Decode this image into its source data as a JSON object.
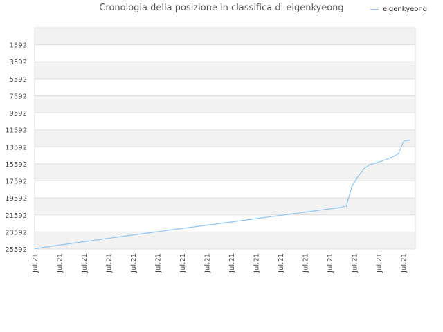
{
  "chart_data": {
    "type": "line",
    "title": "Cronologia della posizione in classifica di eigenkyeong",
    "legend": {
      "position": "top-right",
      "entries": [
        "eigenkyeong"
      ]
    },
    "series": [
      {
        "name": "eigenkyeong",
        "color": "#8ec4f0",
        "x": [
          0,
          1,
          2,
          3,
          4,
          5,
          6,
          7,
          8,
          9,
          10,
          11,
          12,
          13,
          14,
          15,
          16,
          17,
          18,
          19,
          20,
          21,
          22,
          23,
          24,
          25,
          26,
          27,
          28,
          29,
          30,
          31,
          32,
          33,
          34,
          35,
          36,
          37,
          38,
          39,
          40,
          41,
          42,
          43,
          44,
          45,
          46,
          47,
          48,
          49,
          50,
          51,
          52,
          53,
          54,
          55,
          56,
          57,
          58,
          59,
          60,
          61,
          62,
          63,
          64,
          65
        ],
        "values": [
          25550,
          25450,
          25350,
          25250,
          25160,
          25070,
          24980,
          24880,
          24780,
          24690,
          24600,
          24510,
          24410,
          24320,
          24230,
          24140,
          24050,
          23950,
          23860,
          23770,
          23680,
          23590,
          23500,
          23410,
          23320,
          23230,
          23140,
          23050,
          22960,
          22870,
          22780,
          22690,
          22600,
          22510,
          22420,
          22330,
          22240,
          22150,
          22060,
          21970,
          21880,
          21790,
          21700,
          21610,
          21520,
          21430,
          21340,
          21250,
          21160,
          21070,
          20980,
          20890,
          20800,
          20720,
          20550,
          18200,
          17100,
          16200,
          15700,
          15500,
          15300,
          15050,
          14780,
          14420,
          12900,
          12800
        ]
      }
    ],
    "x_tick_labels": [
      "Jul.21",
      "Jul.21",
      "Jul.21",
      "Jul.21",
      "Jul.21",
      "Jul.21",
      "Jul.21",
      "Jul.21",
      "Jul.21",
      "Jul.21",
      "Jul.21",
      "Jul.21",
      "Jul.21",
      "Jul.21",
      "Jul.21",
      "Jul.21"
    ],
    "y_ticks": [
      1592,
      3592,
      5592,
      7592,
      9592,
      11592,
      13592,
      15592,
      17592,
      19592,
      21592,
      23592,
      25592
    ],
    "ylim": [
      -408,
      25592
    ],
    "y_inverted": true,
    "xlabel": "",
    "ylabel": "",
    "grid": true,
    "band_colors": [
      "#f2f2f2",
      "#ffffff"
    ],
    "grid_color": "#dddddd"
  }
}
